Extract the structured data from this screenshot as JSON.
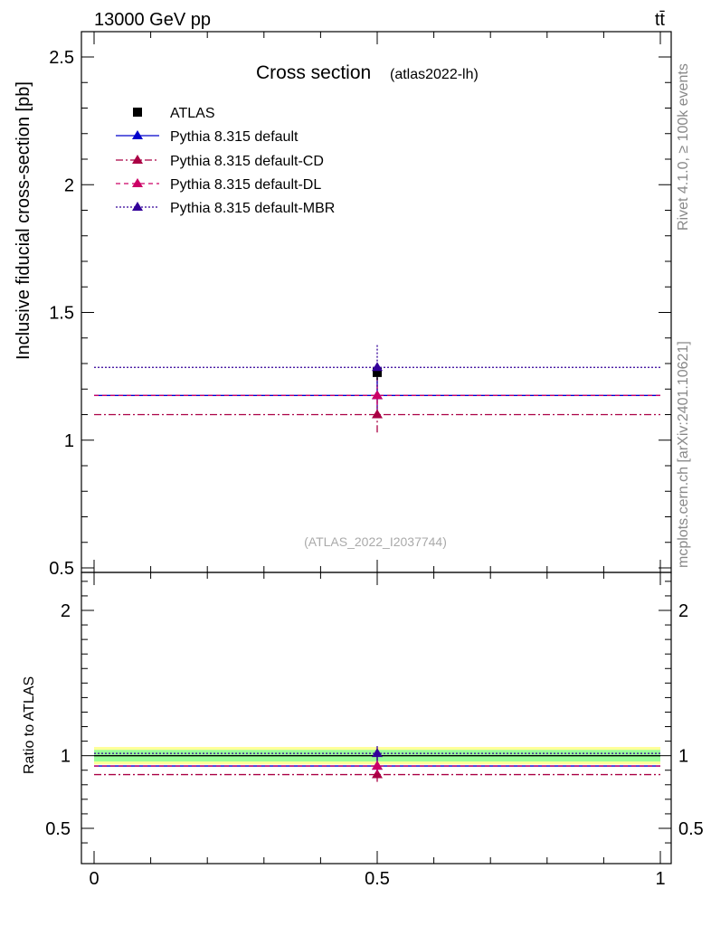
{
  "header": {
    "energy_label": "13000 GeV pp",
    "process_label": "tt̄"
  },
  "side_labels": {
    "rivet": "Rivet 4.1.0, ≥ 100k events",
    "mcplots": "mcplots.cern.ch [arXiv:2401.10621]"
  },
  "chart_data": {
    "type": "scatter",
    "title": "Cross section",
    "subtitle": "(atlas2022-lh)",
    "analysis_id": "(ATLAS_2022_I2037744)",
    "xlabel": "",
    "ylabel": "Inclusive fiducial cross-section [pb]",
    "xlim": [
      0,
      1
    ],
    "ylim": [
      0.5,
      2.6
    ],
    "x_ticks": [
      0,
      0.5,
      1
    ],
    "x_tick_labels": [
      "0",
      "0.5",
      "1"
    ],
    "y_ticks": [
      0.5,
      1,
      1.5,
      2,
      2.5
    ],
    "y_tick_labels": [
      "0.5",
      "1",
      "1.5",
      "2",
      "2.5"
    ],
    "ratio": {
      "ylabel": "Ratio to ATLAS",
      "ylim": [
        0.34,
        2.34
      ],
      "y_ticks": [
        0.5,
        1,
        2
      ],
      "y_tick_labels": [
        "0.5",
        "1",
        "2"
      ],
      "band_outer": [
        0.94,
        1.06
      ],
      "band_inner": [
        0.96,
        1.04
      ],
      "band_outer_color": "#ffff99",
      "band_inner_color": "#99ff99"
    },
    "data": {
      "name": "ATLAS",
      "x": 0.5,
      "y": 1.265,
      "err": 0.03,
      "color": "#000000"
    },
    "series": [
      {
        "name": "Pythia 8.315 default",
        "x": [
          0,
          1
        ],
        "y": 1.175,
        "center": 0.5,
        "err": 0.07,
        "ratio": 0.929,
        "color": "#0000cc",
        "dash": ""
      },
      {
        "name": "Pythia 8.315 default-CD",
        "x": [
          0,
          1
        ],
        "y": 1.1,
        "center": 0.5,
        "err": 0.07,
        "ratio": 0.87,
        "color": "#aa0044",
        "dash": "8 3 2 3"
      },
      {
        "name": "Pythia 8.315 default-DL",
        "x": [
          0,
          1
        ],
        "y": 1.175,
        "center": 0.5,
        "err": 0.07,
        "ratio": 0.929,
        "color": "#cc0066",
        "dash": "5 4"
      },
      {
        "name": "Pythia 8.315 default-MBR",
        "x": [
          0,
          1
        ],
        "y": 1.285,
        "center": 0.5,
        "err": 0.09,
        "ratio": 1.016,
        "color": "#330099",
        "dash": "2 2"
      }
    ]
  }
}
